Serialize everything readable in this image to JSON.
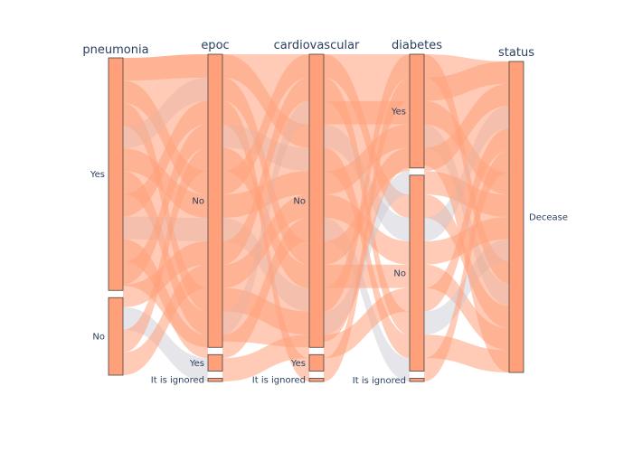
{
  "chart_data": {
    "type": "parallel-categories",
    "dimensions": [
      {
        "name": "pneumonia",
        "categories": [
          {
            "label": "Yes",
            "share": 0.75
          },
          {
            "label": "No",
            "share": 0.25
          }
        ]
      },
      {
        "name": "epoc",
        "categories": [
          {
            "label": "No",
            "share": 0.925
          },
          {
            "label": "Yes",
            "share": 0.052
          },
          {
            "label": "It is ignored",
            "share": 0.01
          }
        ]
      },
      {
        "name": "cardiovascular",
        "categories": [
          {
            "label": "No",
            "share": 0.925
          },
          {
            "label": "Yes",
            "share": 0.052
          },
          {
            "label": "It is ignored",
            "share": 0.01
          }
        ]
      },
      {
        "name": "diabetes",
        "categories": [
          {
            "label": "Yes",
            "share": 0.36
          },
          {
            "label": "No",
            "share": 0.62
          },
          {
            "label": "It is ignored",
            "share": 0.01
          }
        ]
      },
      {
        "name": "status",
        "categories": [
          {
            "label": "Decease",
            "share": 1.0
          }
        ]
      }
    ],
    "color": "#ffa07a",
    "label_color": "#2a3f5f"
  }
}
